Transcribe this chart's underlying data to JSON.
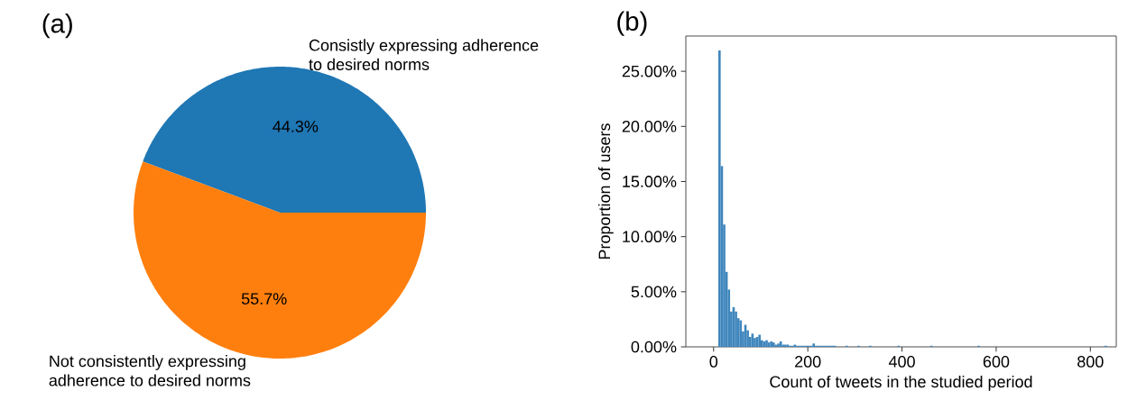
{
  "chart_data": [
    {
      "type": "pie",
      "title": "(a)",
      "categories": [
        "Consistly expressing adherence to desired norms",
        "Not consistently expressing adherence to desired norms"
      ],
      "values": [
        44.3,
        55.7
      ],
      "colors": [
        "#1f77b4",
        "#ff7f0e"
      ],
      "value_labels": [
        "44.3%",
        "55.7%"
      ]
    },
    {
      "type": "histogram",
      "title": "(b)",
      "xlabel": "Count of tweets in the studied period",
      "ylabel": "Proportion of users",
      "color": "#3f86bd",
      "bins": [
        10,
        15,
        20,
        25,
        30,
        35,
        40,
        45,
        50,
        55,
        60,
        65,
        70,
        75,
        80,
        85,
        90,
        95,
        100,
        105,
        110,
        115,
        120,
        125,
        130,
        135,
        140,
        145,
        150,
        155,
        160,
        165,
        170,
        175,
        180,
        185,
        190,
        195,
        200,
        205,
        210,
        215,
        220,
        225,
        230,
        235,
        240,
        245,
        250,
        255,
        260,
        280,
        285,
        305,
        310,
        330,
        335,
        390,
        395,
        460,
        465,
        560,
        565,
        830,
        835
      ],
      "values": [
        26.9,
        16.4,
        11.1,
        6.8,
        5.2,
        3.2,
        3.6,
        3.2,
        2.6,
        2.4,
        1.4,
        2.0,
        1.5,
        0.9,
        1.2,
        0.8,
        0.9,
        1.1,
        0.6,
        0.5,
        0.6,
        0.4,
        0.5,
        0.4,
        0.2,
        0.3,
        0.5,
        0.2,
        0.2,
        0.2,
        0.1,
        0.1,
        0.2,
        0.1,
        0.1,
        0.1,
        0.1,
        0.1,
        0.1,
        0.1,
        0.3,
        0.1,
        0.1,
        0.1,
        0.1,
        0.1,
        0.1,
        0.1,
        0.1,
        0.1,
        0,
        0.1,
        0,
        0.1,
        0,
        0.1,
        0,
        0.1,
        0,
        0.1,
        0,
        0.1,
        0,
        0.1
      ],
      "xlim": [
        -59,
        855
      ],
      "ylim": [
        0,
        28.2
      ],
      "xticks": [
        0,
        200,
        400,
        600,
        800
      ],
      "yticks": [
        {
          "value": 0,
          "label": "0.00%"
        },
        {
          "value": 5,
          "label": "5.00%"
        },
        {
          "value": 10,
          "label": "10.00%"
        },
        {
          "value": 15,
          "label": "15.00%"
        },
        {
          "value": 20,
          "label": "20.00%"
        },
        {
          "value": 25,
          "label": "25.00%"
        }
      ]
    }
  ]
}
